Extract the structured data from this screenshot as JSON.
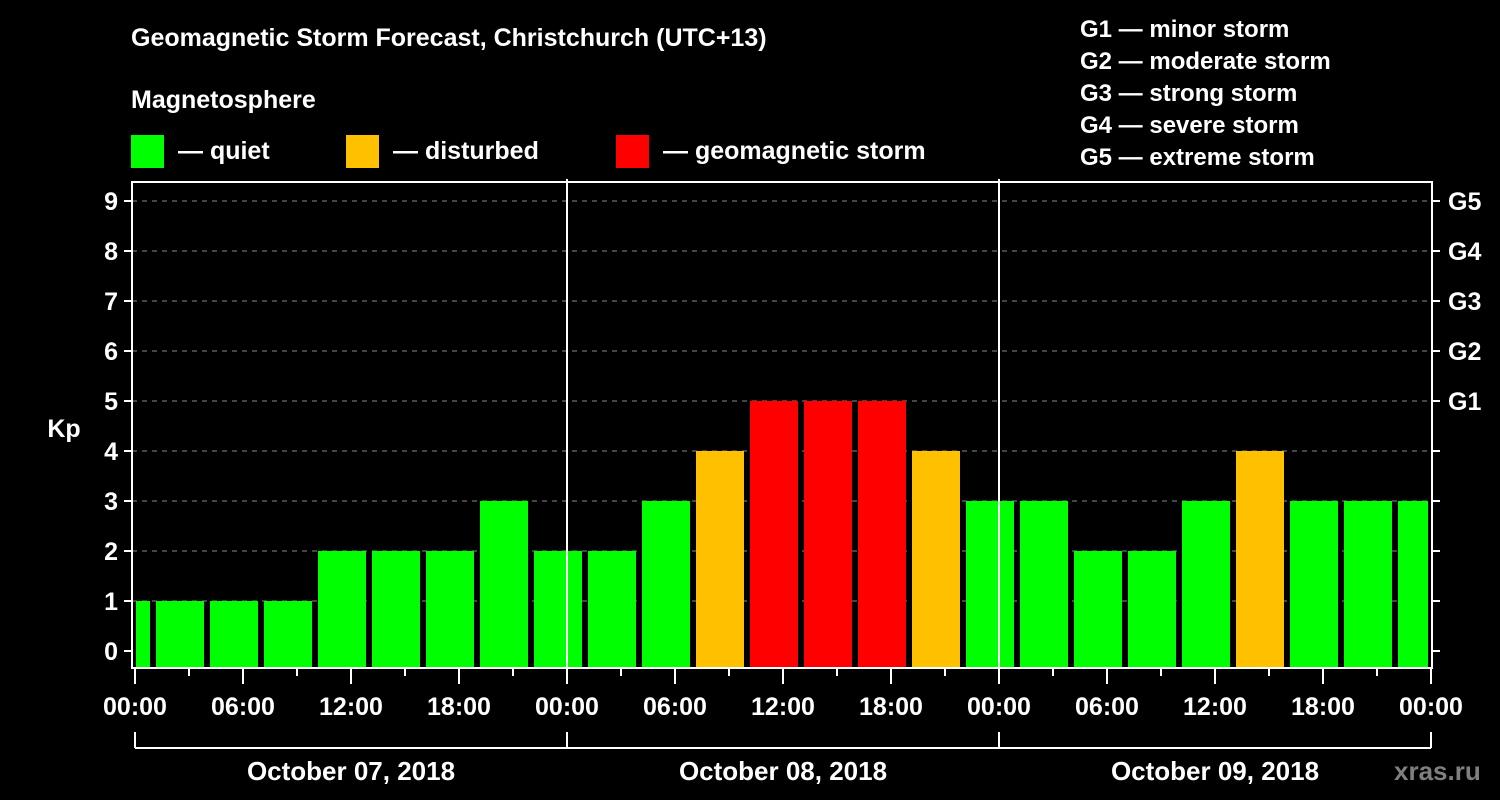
{
  "header": {
    "title": "Geomagnetic Storm Forecast, Christchurch (UTC+13)",
    "magnetosphere_label": "Magnetosphere"
  },
  "legend": [
    {
      "label": "— quiet",
      "color": "#00FF00"
    },
    {
      "label": "— disturbed",
      "color": "#FFC000"
    },
    {
      "label": "— geomagnetic storm",
      "color": "#FF0000"
    }
  ],
  "g_scale": [
    {
      "label": "G1 — minor storm"
    },
    {
      "label": "G2 — moderate storm"
    },
    {
      "label": "G3 — strong storm"
    },
    {
      "label": "G4 — severe storm"
    },
    {
      "label": "G5 — extreme storm"
    }
  ],
  "watermark": "xras.ru",
  "chart_data": {
    "type": "bar",
    "title": "Geomagnetic Storm Forecast, Christchurch (UTC+13)",
    "xlabel": "",
    "ylabel": "Kp",
    "ylim": [
      0,
      9
    ],
    "yticks": [
      0,
      1,
      2,
      3,
      4,
      5,
      6,
      7,
      8,
      9
    ],
    "right_axis_labels": [
      {
        "kp": 5,
        "label": "G1"
      },
      {
        "kp": 6,
        "label": "G2"
      },
      {
        "kp": 7,
        "label": "G3"
      },
      {
        "kp": 8,
        "label": "G4"
      },
      {
        "kp": 9,
        "label": "G5"
      }
    ],
    "grid": true,
    "legend_position": "top",
    "x_tick_labels": [
      "00:00",
      "06:00",
      "12:00",
      "18:00",
      "00:00",
      "06:00",
      "12:00",
      "18:00",
      "00:00",
      "06:00",
      "12:00",
      "18:00",
      "00:00"
    ],
    "days": [
      "October 07, 2018",
      "October 08, 2018",
      "October 09, 2018"
    ],
    "colors": {
      "quiet": "#00FF00",
      "disturbed": "#FFC000",
      "storm": "#FF0000"
    },
    "bar_intervals_local": [
      "Oct 07 00:00-01:00",
      "Oct 07 01:00-04:00",
      "Oct 07 04:00-07:00",
      "Oct 07 07:00-10:00",
      "Oct 07 10:00-13:00",
      "Oct 07 13:00-16:00",
      "Oct 07 16:00-19:00",
      "Oct 07 19:00-22:00",
      "Oct 07 22:00-Oct 08 01:00",
      "Oct 08 01:00-04:00",
      "Oct 08 04:00-07:00",
      "Oct 08 07:00-10:00",
      "Oct 08 10:00-13:00",
      "Oct 08 13:00-16:00",
      "Oct 08 16:00-19:00",
      "Oct 08 19:00-22:00",
      "Oct 08 22:00-Oct 09 01:00",
      "Oct 09 01:00-04:00",
      "Oct 09 04:00-07:00",
      "Oct 09 07:00-10:00",
      "Oct 09 10:00-13:00",
      "Oct 09 13:00-16:00",
      "Oct 09 16:00-19:00",
      "Oct 09 19:00-22:00",
      "Oct 09 22:00-24:00"
    ],
    "bars": [
      {
        "start_h": 0,
        "end_h": 1,
        "kp": 1,
        "status": "quiet"
      },
      {
        "start_h": 1,
        "end_h": 4,
        "kp": 1,
        "status": "quiet"
      },
      {
        "start_h": 4,
        "end_h": 7,
        "kp": 1,
        "status": "quiet"
      },
      {
        "start_h": 7,
        "end_h": 10,
        "kp": 1,
        "status": "quiet"
      },
      {
        "start_h": 10,
        "end_h": 13,
        "kp": 2,
        "status": "quiet"
      },
      {
        "start_h": 13,
        "end_h": 16,
        "kp": 2,
        "status": "quiet"
      },
      {
        "start_h": 16,
        "end_h": 19,
        "kp": 2,
        "status": "quiet"
      },
      {
        "start_h": 19,
        "end_h": 22,
        "kp": 3,
        "status": "quiet"
      },
      {
        "start_h": 22,
        "end_h": 25,
        "kp": 2,
        "status": "quiet"
      },
      {
        "start_h": 25,
        "end_h": 28,
        "kp": 2,
        "status": "quiet"
      },
      {
        "start_h": 28,
        "end_h": 31,
        "kp": 3,
        "status": "quiet"
      },
      {
        "start_h": 31,
        "end_h": 34,
        "kp": 4,
        "status": "disturbed"
      },
      {
        "start_h": 34,
        "end_h": 37,
        "kp": 5,
        "status": "storm"
      },
      {
        "start_h": 37,
        "end_h": 40,
        "kp": 5,
        "status": "storm"
      },
      {
        "start_h": 40,
        "end_h": 43,
        "kp": 5,
        "status": "storm"
      },
      {
        "start_h": 43,
        "end_h": 46,
        "kp": 4,
        "status": "disturbed"
      },
      {
        "start_h": 46,
        "end_h": 49,
        "kp": 3,
        "status": "quiet"
      },
      {
        "start_h": 49,
        "end_h": 52,
        "kp": 3,
        "status": "quiet"
      },
      {
        "start_h": 52,
        "end_h": 55,
        "kp": 2,
        "status": "quiet"
      },
      {
        "start_h": 55,
        "end_h": 58,
        "kp": 2,
        "status": "quiet"
      },
      {
        "start_h": 58,
        "end_h": 61,
        "kp": 3,
        "status": "quiet"
      },
      {
        "start_h": 61,
        "end_h": 64,
        "kp": 4,
        "status": "disturbed"
      },
      {
        "start_h": 64,
        "end_h": 67,
        "kp": 3,
        "status": "quiet"
      },
      {
        "start_h": 67,
        "end_h": 70,
        "kp": 3,
        "status": "quiet"
      },
      {
        "start_h": 70,
        "end_h": 72,
        "kp": 3,
        "status": "quiet"
      }
    ],
    "values": [
      1,
      1,
      1,
      1,
      2,
      2,
      2,
      3,
      2,
      2,
      3,
      4,
      5,
      5,
      5,
      4,
      3,
      3,
      2,
      2,
      3,
      4,
      3,
      3,
      3
    ],
    "x_range_hours": [
      0,
      72
    ]
  }
}
